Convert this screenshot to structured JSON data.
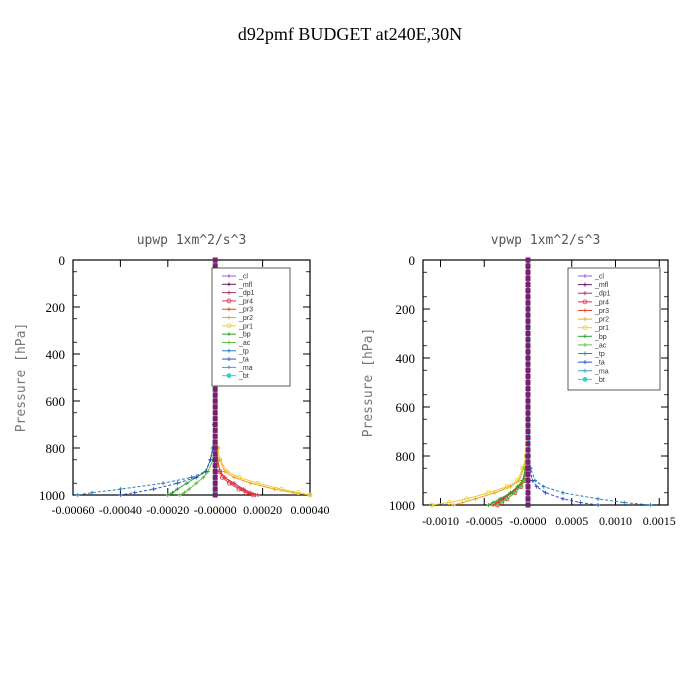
{
  "figure_title": "d92pmf  BUDGET at240E,30N",
  "colors": {
    "_cl": "#9b59d0",
    "_mfl": "#6a1b6a",
    "_dp1": "#b0306a",
    "_pr4": "#e0304f",
    "_pr3": "#e8402a",
    "_pr2": "#f0a030",
    "_pr1": "#e8d030",
    "_bp": "#2aa02a",
    "_ac": "#60c040",
    "_tp": "#2080c0",
    "_ta": "#3050d0",
    "_ma": "#40a0c0",
    "_bt": "#30d0d0"
  },
  "chart_data": [
    {
      "type": "line",
      "title": "upwp   1xm^2/s^3",
      "ylabel": "Pressure [hPa]",
      "ylim": [
        1000,
        0
      ],
      "y_inverted": true,
      "xlim": [
        -0.0006,
        0.0004
      ],
      "xticks": [
        "-0.00060",
        "-0.00040",
        "-0.00020",
        "-0.00000",
        "0.00020",
        "0.00040"
      ],
      "yticks": [
        "0",
        "200",
        "400",
        "600",
        "800",
        "1000"
      ],
      "legend": [
        "_cl",
        "_mfl",
        "_dp1",
        "_pr4",
        "_pr3",
        "_pr2",
        "_pr1",
        "_bp",
        "_ac",
        "_tp",
        "_ta",
        "_ma",
        "_bt"
      ],
      "legend_position": "top-right",
      "pressure": [
        0,
        100,
        200,
        300,
        400,
        500,
        600,
        700,
        800,
        850,
        900,
        925,
        950,
        975,
        990,
        1000
      ],
      "series": [
        {
          "name": "_cl",
          "values": [
            0,
            0,
            0,
            0,
            0,
            0,
            0,
            0,
            0,
            0,
            0,
            0,
            0,
            0,
            0,
            0
          ]
        },
        {
          "name": "_mfl",
          "values": [
            0,
            0,
            0,
            0,
            0,
            0,
            0,
            0,
            0,
            0,
            0,
            0,
            0,
            0,
            0,
            0
          ]
        },
        {
          "name": "_dp1",
          "values": [
            0,
            0,
            0,
            0,
            0,
            0,
            0,
            0,
            5e-06,
            1e-05,
            2e-05,
            4e-05,
            8e-05,
            0.00012,
            0.00015,
            0.00018
          ]
        },
        {
          "name": "_pr4",
          "values": [
            0,
            0,
            0,
            0,
            0,
            0,
            0,
            0,
            5e-06,
            1e-05,
            2e-05,
            3e-05,
            6e-05,
            0.0001,
            0.00013,
            0.00016
          ]
        },
        {
          "name": "_pr3",
          "values": [
            0,
            0,
            0,
            0,
            0,
            0,
            0,
            0,
            4e-06,
            1e-05,
            2e-05,
            4e-05,
            7e-05,
            0.00011,
            0.00014,
            0.00017
          ]
        },
        {
          "name": "_pr2",
          "values": [
            0,
            0,
            0,
            0,
            0,
            0,
            0,
            0,
            1e-05,
            2e-05,
            4e-05,
            8e-05,
            0.00015,
            0.00025,
            0.00033,
            0.0004
          ]
        },
        {
          "name": "_pr1",
          "values": [
            0,
            0,
            0,
            0,
            0,
            0,
            0,
            0,
            1e-05,
            2e-05,
            5e-05,
            0.0001,
            0.00018,
            0.00028,
            0.00035,
            0.0004
          ]
        },
        {
          "name": "_bp",
          "values": [
            0,
            0,
            0,
            0,
            0,
            0,
            0,
            0,
            -1e-05,
            -2e-05,
            -4e-05,
            -8e-05,
            -0.00012,
            -0.00016,
            -0.00018,
            -0.0002
          ]
        },
        {
          "name": "_ac",
          "values": [
            0,
            0,
            0,
            0,
            0,
            0,
            0,
            0,
            -5e-06,
            -1e-05,
            -3e-05,
            -5e-05,
            -8e-05,
            -0.00011,
            -0.00013,
            -0.00015
          ]
        },
        {
          "name": "_tp",
          "values": [
            0,
            0,
            0,
            0,
            0,
            0,
            0,
            -5e-06,
            -1e-05,
            -2e-05,
            -4e-05,
            -0.0001,
            -0.00022,
            -0.0004,
            -0.00052,
            -0.00058
          ]
        },
        {
          "name": "_ta",
          "values": [
            0,
            0,
            0,
            0,
            0,
            0,
            0,
            0,
            -1e-05,
            -2e-05,
            -4e-05,
            -8e-05,
            -0.00016,
            -0.00026,
            -0.00034,
            -0.0004
          ]
        },
        {
          "name": "_ma",
          "values": [
            0,
            0,
            0,
            0,
            0,
            0,
            0,
            0,
            0,
            0,
            0,
            0,
            0,
            0,
            0,
            0
          ]
        },
        {
          "name": "_bt",
          "values": [
            0,
            0,
            0,
            0,
            0,
            0,
            0,
            0,
            0,
            0,
            0,
            0,
            0,
            0,
            0,
            0
          ]
        }
      ]
    },
    {
      "type": "line",
      "title": "vpwp   1xm^2/s^3",
      "ylabel": "Pressure [hPa]",
      "ylim": [
        1000,
        0
      ],
      "y_inverted": true,
      "xlim": [
        -0.0012,
        0.0016
      ],
      "xticks": [
        "-0.0010",
        "-0.0005",
        "-0.0000",
        "0.0005",
        "0.0010",
        "0.0015"
      ],
      "yticks": [
        "0",
        "200",
        "400",
        "600",
        "800",
        "1000"
      ],
      "legend": [
        "_cl",
        "_mfl",
        "_dp1",
        "_pr4",
        "_pr3",
        "_pr2",
        "_pr1",
        "_bp",
        "_ac",
        "_tp",
        "_ta",
        "_ma",
        "_bt"
      ],
      "legend_position": "top-right",
      "pressure": [
        0,
        100,
        200,
        300,
        400,
        500,
        600,
        700,
        800,
        850,
        900,
        925,
        950,
        975,
        990,
        1000
      ],
      "series": [
        {
          "name": "_cl",
          "values": [
            0,
            0,
            0,
            0,
            0,
            0,
            0,
            0,
            0,
            0,
            0,
            0,
            0,
            0,
            0,
            0
          ]
        },
        {
          "name": "_mfl",
          "values": [
            0,
            0,
            0,
            0,
            0,
            0,
            0,
            0,
            0,
            0,
            0,
            0,
            0,
            0,
            0,
            0
          ]
        },
        {
          "name": "_dp1",
          "values": [
            0,
            0,
            0,
            0,
            0,
            0,
            0,
            0,
            -1e-05,
            -2e-05,
            -5e-05,
            -0.0001,
            -0.00018,
            -0.00028,
            -0.00034,
            -0.0004
          ]
        },
        {
          "name": "_pr4",
          "values": [
            0,
            0,
            0,
            0,
            0,
            0,
            0,
            0,
            -1e-05,
            -2e-05,
            -4e-05,
            -8e-05,
            -0.00015,
            -0.00024,
            -0.0003,
            -0.00035
          ]
        },
        {
          "name": "_pr3",
          "values": [
            0,
            0,
            0,
            0,
            0,
            0,
            0,
            0,
            -1e-05,
            -2e-05,
            -5e-05,
            -0.0001,
            -0.0002,
            -0.0003,
            -0.00036,
            -0.0004
          ]
        },
        {
          "name": "_pr2",
          "values": [
            0,
            0,
            0,
            0,
            0,
            0,
            0,
            0,
            -2e-05,
            -5e-05,
            -0.0001,
            -0.0002,
            -0.00038,
            -0.0006,
            -0.00075,
            -0.00085
          ]
        },
        {
          "name": "_pr1",
          "values": [
            0,
            0,
            0,
            0,
            0,
            0,
            0,
            0,
            -2e-05,
            -6e-05,
            -0.00012,
            -0.00024,
            -0.00045,
            -0.0007,
            -0.0009,
            -0.0011
          ]
        },
        {
          "name": "_bp",
          "values": [
            0,
            0,
            0,
            0,
            0,
            0,
            0,
            0,
            -1e-05,
            -3e-05,
            -6e-05,
            -0.00012,
            -0.0002,
            -0.00032,
            -0.0004,
            -0.00045
          ]
        },
        {
          "name": "_ac",
          "values": [
            0,
            0,
            0,
            0,
            0,
            0,
            0,
            0,
            -1e-05,
            -2e-05,
            -4e-05,
            -8e-05,
            -0.00015,
            -0.00024,
            -0.0003,
            -0.00035
          ]
        },
        {
          "name": "_tp",
          "values": [
            0,
            0,
            0,
            0,
            0,
            0,
            0,
            0,
            1e-05,
            3e-05,
            8e-05,
            0.00018,
            0.0004,
            0.0008,
            0.0011,
            0.0014
          ]
        },
        {
          "name": "_ta",
          "values": [
            0,
            0,
            0,
            0,
            0,
            0,
            0,
            0,
            1e-05,
            2e-05,
            5e-05,
            0.0001,
            0.0002,
            0.0004,
            0.0006,
            0.0008
          ]
        },
        {
          "name": "_ma",
          "values": [
            0,
            0,
            0,
            0,
            0,
            0,
            0,
            0,
            0,
            0,
            0,
            0,
            0,
            0,
            0,
            0
          ]
        },
        {
          "name": "_bt",
          "values": [
            0,
            0,
            0,
            0,
            0,
            0,
            0,
            0,
            0,
            0,
            0,
            0,
            0,
            0,
            0,
            0
          ]
        }
      ]
    }
  ]
}
